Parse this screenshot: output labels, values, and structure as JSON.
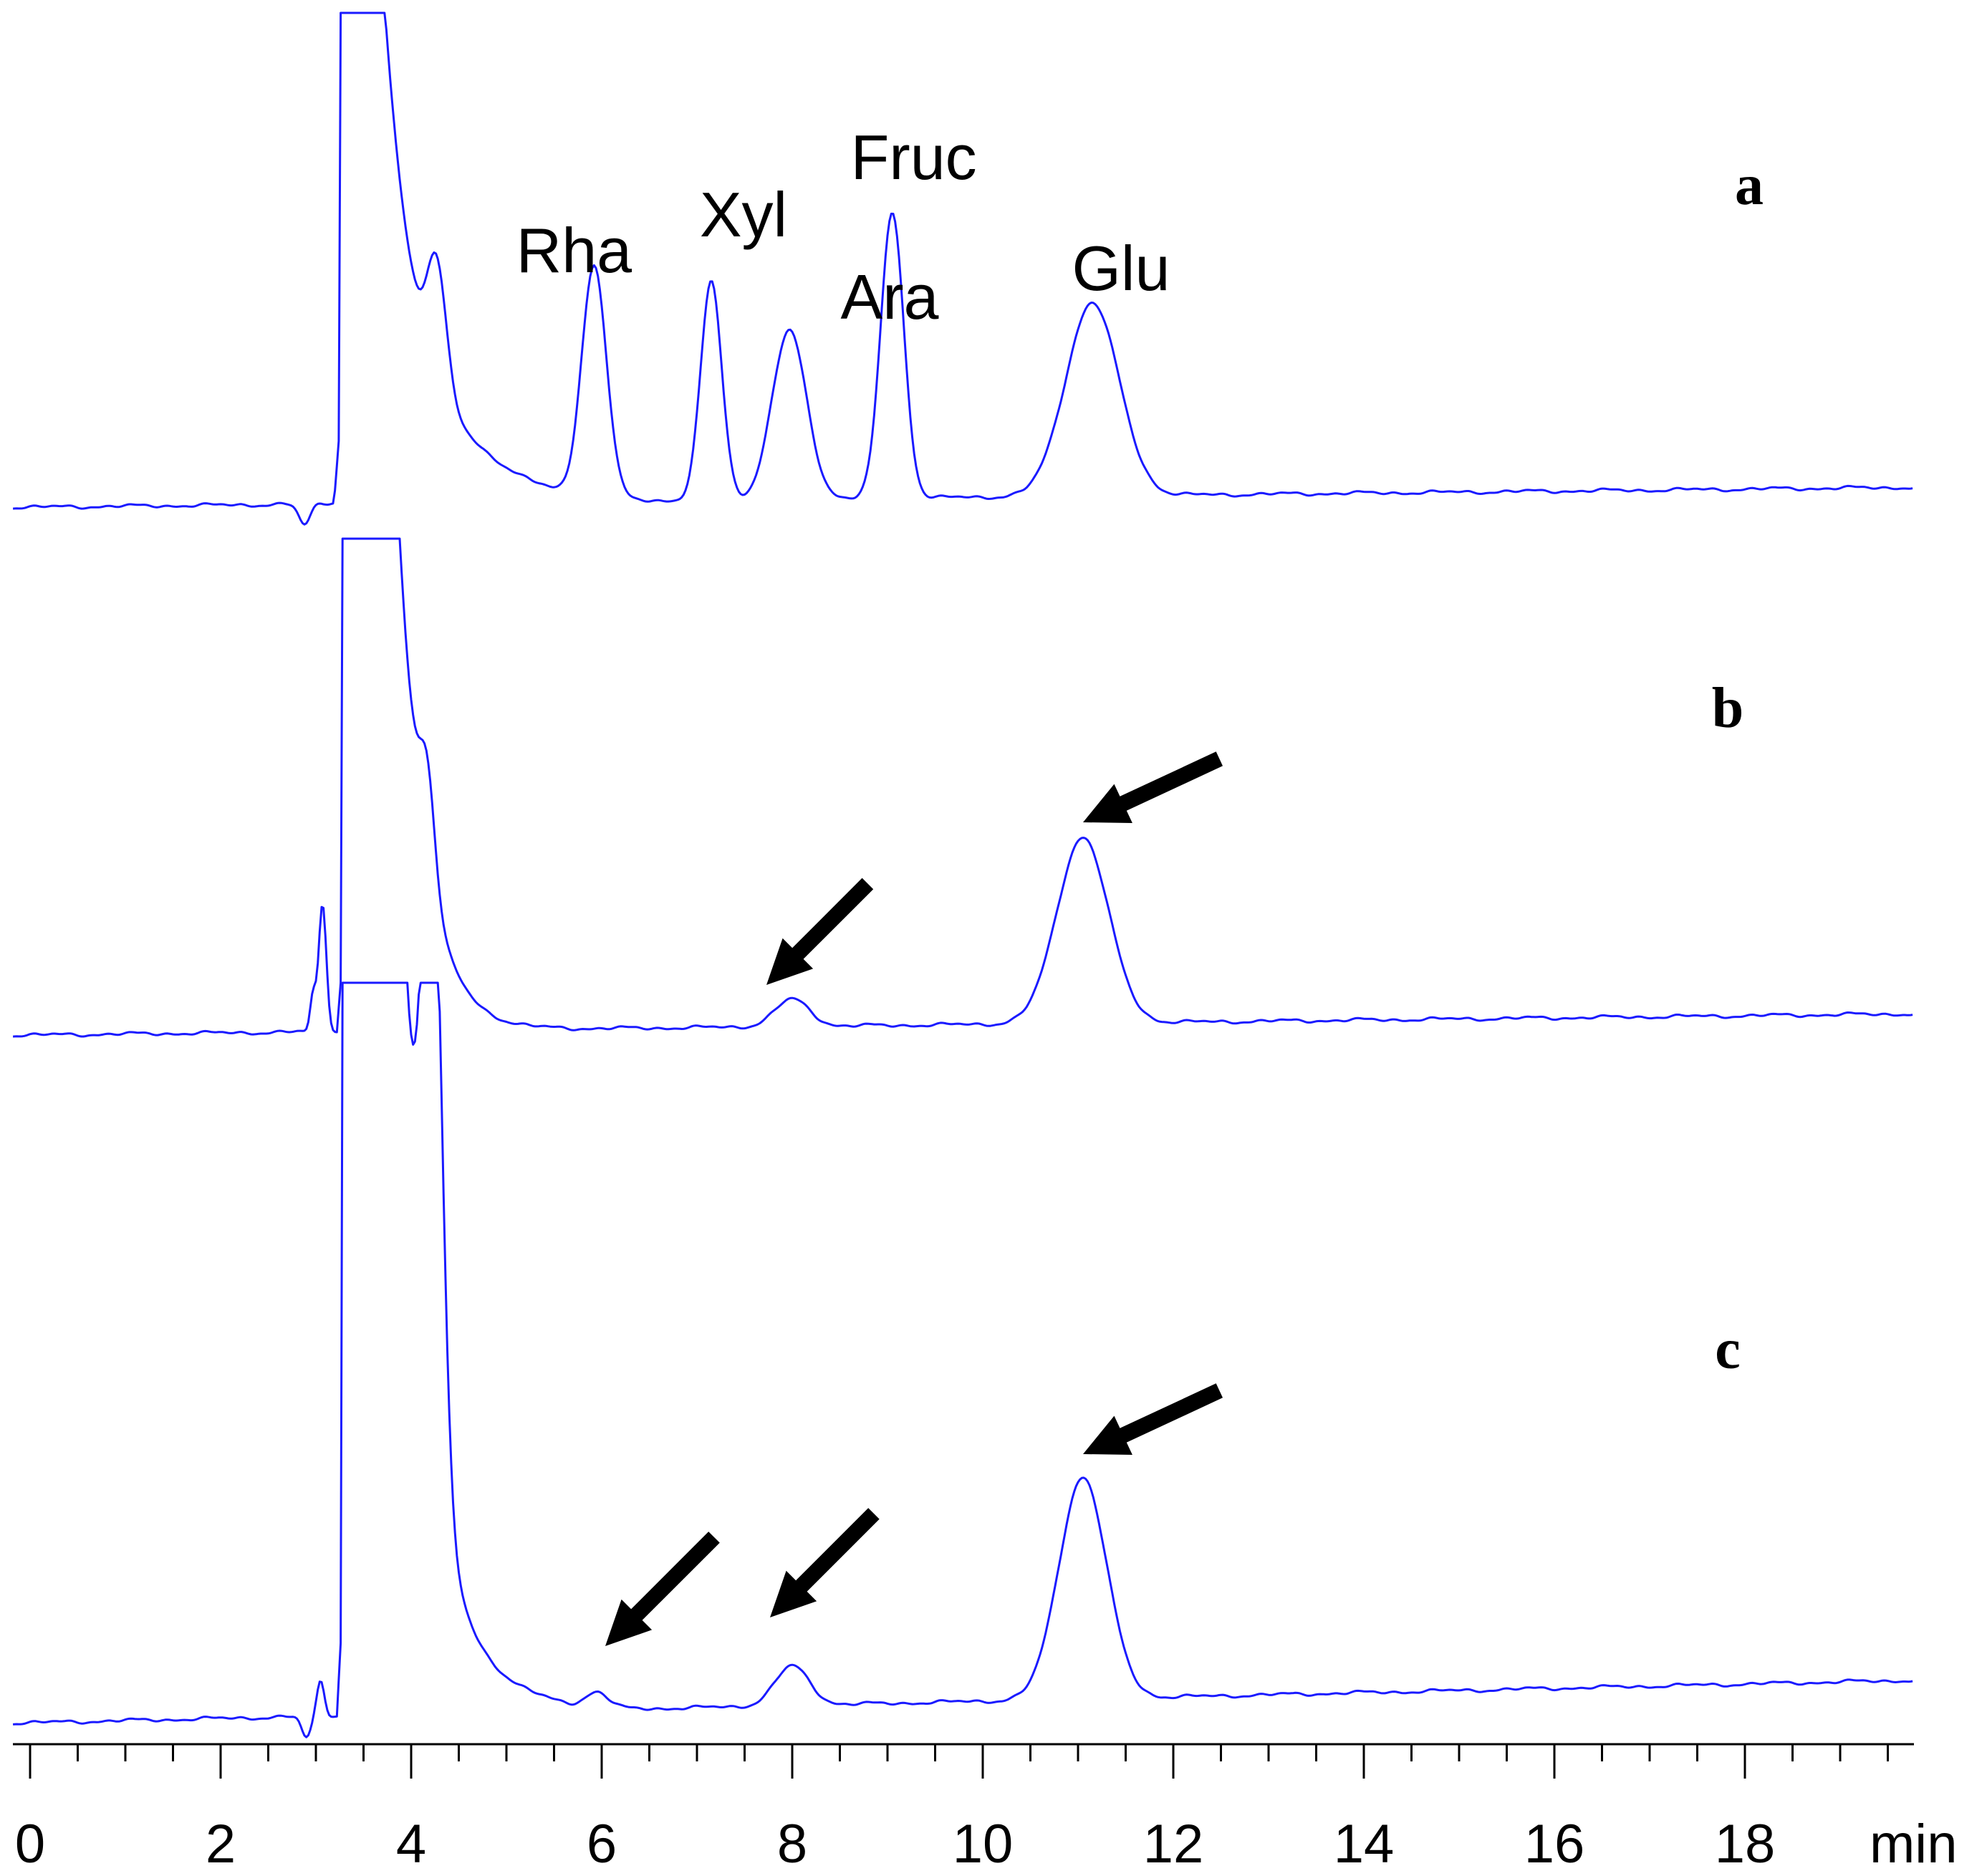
{
  "chart_data": {
    "type": "line",
    "title": "",
    "xlabel": "min",
    "ylabel": "",
    "xlim": [
      0,
      20
    ],
    "x_ticks": [
      0,
      2,
      4,
      6,
      8,
      10,
      12,
      14,
      16,
      18
    ],
    "grid": false,
    "legend": "none",
    "series": [
      {
        "name": "a",
        "peaks": [
          {
            "label": "Rha",
            "retention_time": 5.92,
            "height": 0.48
          },
          {
            "label": "Xyl",
            "retention_time": 7.15,
            "height": 0.47
          },
          {
            "label": "Ara",
            "retention_time": 7.97,
            "height": 0.36
          },
          {
            "label": "Fruc",
            "retention_time": 9.05,
            "height": 0.6
          },
          {
            "label": "Glu",
            "retention_time": 11.15,
            "height": 0.41
          }
        ]
      },
      {
        "name": "b",
        "arrows_at": [
          8.0,
          11.0
        ]
      },
      {
        "name": "c",
        "arrows_at": [
          6.0,
          8.0,
          11.0
        ]
      }
    ],
    "colors": {
      "trace": "#1a1aff",
      "axis": "#000000",
      "arrow": "#000000"
    }
  }
}
